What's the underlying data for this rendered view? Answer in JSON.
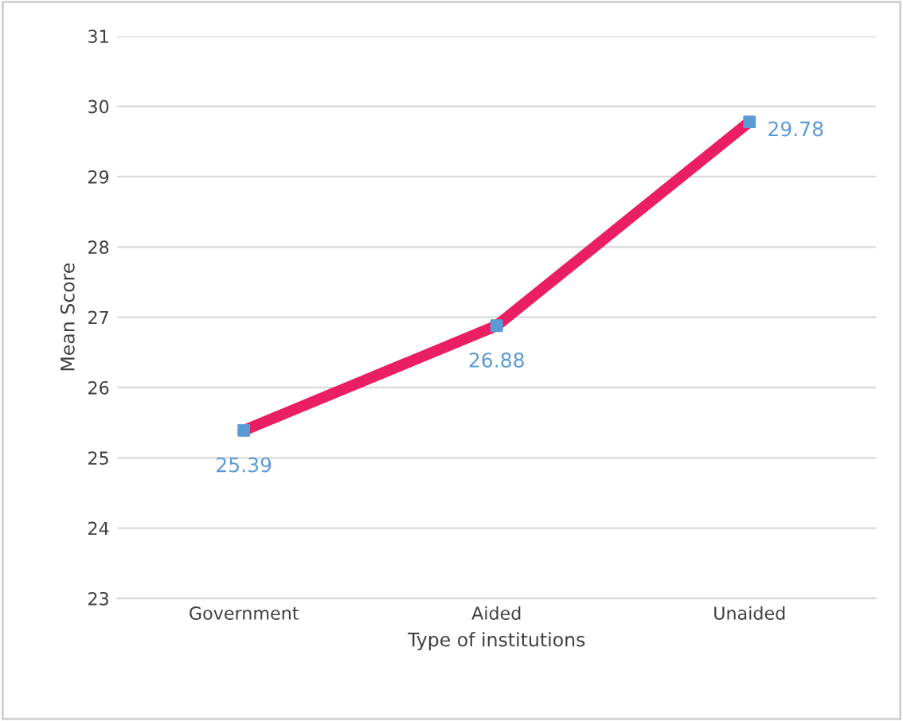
{
  "chart_data": {
    "type": "line",
    "xlabel": "Type of institutions",
    "ylabel": "Mean Score",
    "categories": [
      "Government",
      "Aided",
      "Unaided"
    ],
    "series": [
      {
        "color": "#ea1e63",
        "colors": [
          "#5b9bd5",
          "#5b9bd5",
          "#5b9bd5"
        ],
        "values": [
          25.39,
          26.88,
          29.78
        ]
      }
    ],
    "ylim": [
      23,
      31
    ],
    "yticks": [
      23,
      24,
      25,
      26,
      27,
      28,
      29,
      30,
      31
    ],
    "grid": "y",
    "marker": "square",
    "line_style": "solid",
    "data_labels": true
  }
}
